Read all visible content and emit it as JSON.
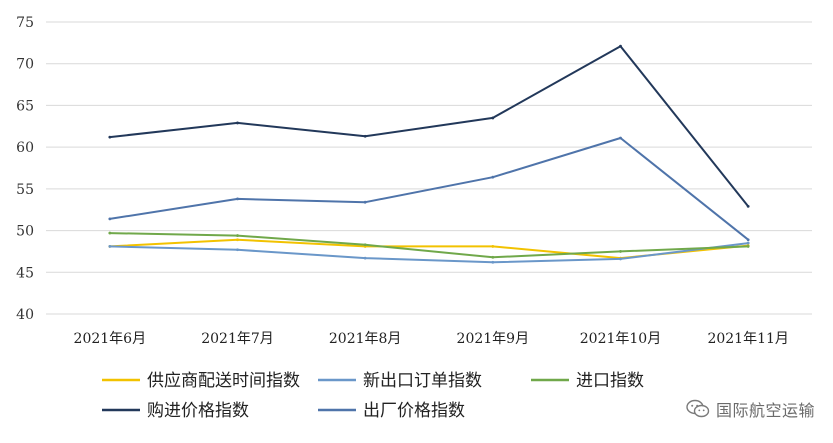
{
  "chart_data": {
    "type": "line",
    "title": "",
    "xlabel": "",
    "ylabel": "",
    "categories": [
      "2021年6月",
      "2021年7月",
      "2021年8月",
      "2021年9月",
      "2021年10月",
      "2021年11月"
    ],
    "ylim": [
      40,
      75
    ],
    "yticks": [
      40,
      45,
      50,
      55,
      60,
      65,
      70,
      75
    ],
    "grid": true,
    "legend_position": "bottom",
    "series": [
      {
        "name": "供应商配送时间指数",
        "color": "#f2c200",
        "values": [
          48.1,
          48.9,
          48.1,
          48.1,
          46.7,
          48.2
        ]
      },
      {
        "name": "新出口订单指数",
        "color": "#6a97c9",
        "values": [
          48.1,
          47.7,
          46.7,
          46.2,
          46.6,
          48.5
        ]
      },
      {
        "name": "进口指数",
        "color": "#70a84a",
        "values": [
          49.7,
          49.4,
          48.3,
          46.8,
          47.5,
          48.1
        ]
      },
      {
        "name": "购进价格指数",
        "color": "#22385a",
        "values": [
          61.2,
          62.9,
          61.3,
          63.5,
          72.1,
          52.9
        ]
      },
      {
        "name": "出厂价格指数",
        "color": "#4f74aa",
        "values": [
          51.4,
          53.8,
          53.4,
          56.4,
          61.1,
          48.9
        ]
      }
    ]
  },
  "watermark": {
    "text": "国际航空运输",
    "icon": "wechat-icon"
  }
}
